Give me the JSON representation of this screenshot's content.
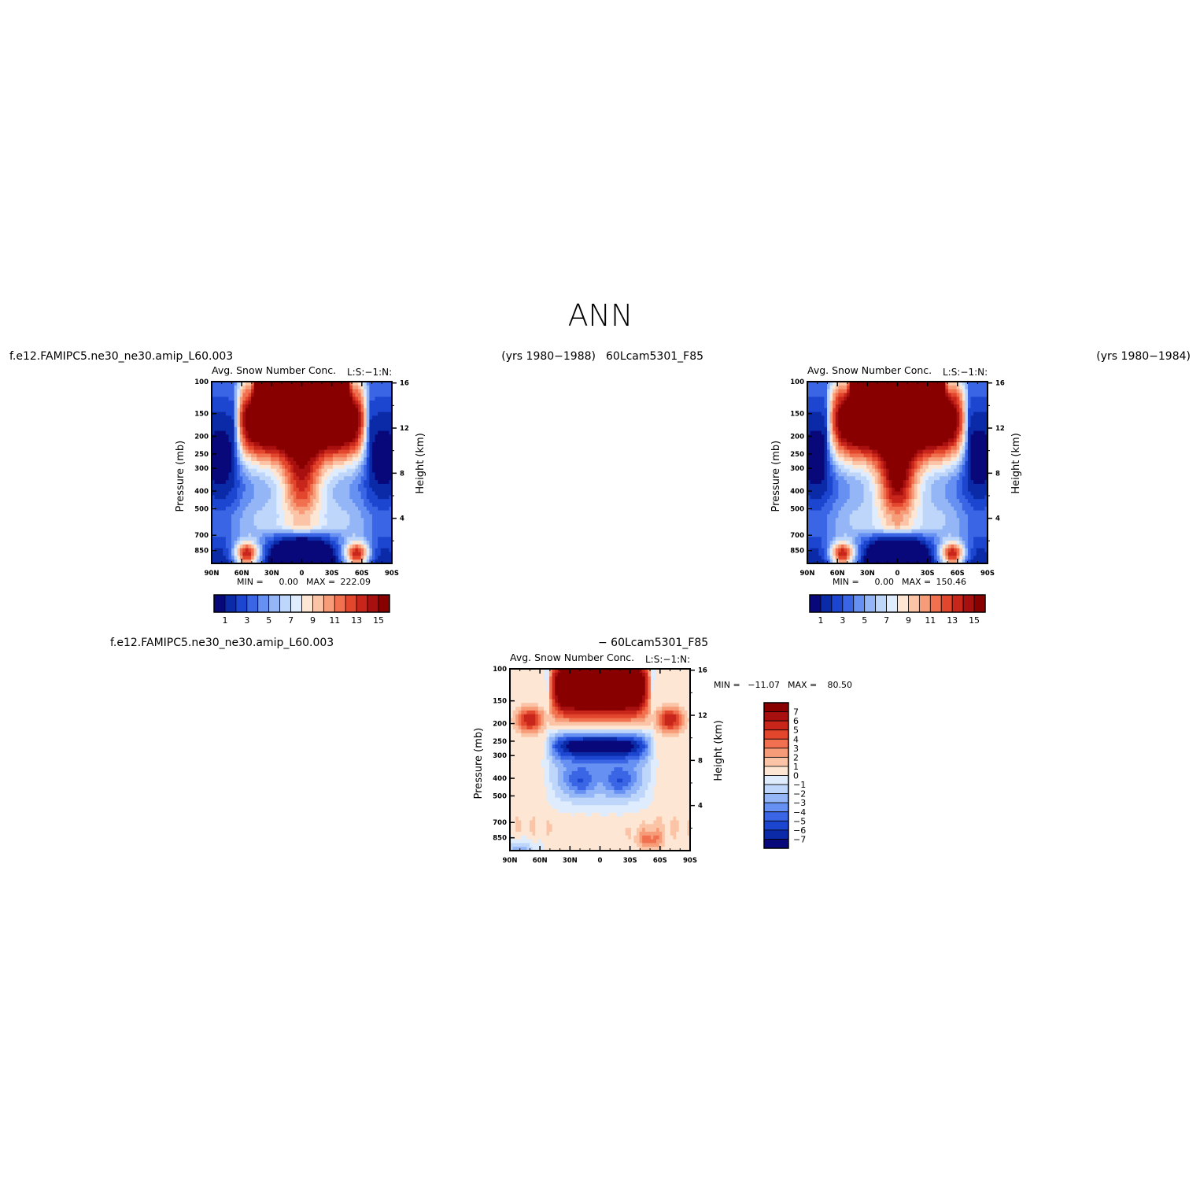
{
  "page": {
    "season_title": "ANN",
    "header": {
      "left_case": "f.e12.FAMIPC5.ne30_ne30.amip_L60.003",
      "left_years": "(yrs 1980−1988)",
      "right_case": "60Lcam5301_F85",
      "right_years": "(yrs 1980−1984)"
    },
    "diff_header": {
      "case_a": "f.e12.FAMIPC5.ne30_ne30.amip_L60.003",
      "case_b": "− 60Lcam5301_F85"
    }
  },
  "colors": {
    "fill_scale": [
      "#08087a",
      "#0a2aa8",
      "#1c46d0",
      "#3a66e6",
      "#6690f2",
      "#94b6f7",
      "#bfd6fb",
      "#deecfd",
      "#fde6d3",
      "#fbc4a6",
      "#f79c78",
      "#f0704f",
      "#e2472d",
      "#c8261a",
      "#a81010",
      "#880000"
    ]
  },
  "chart_data": [
    {
      "type": "heatmap",
      "name": "panel-control",
      "title": "Avg. Snow Number Conc.",
      "title_right": "L:S:−1:N:",
      "ylabel": "Pressure (mb)",
      "ylabel_right": "Height (km)",
      "x_ticks": [
        "90N",
        "60N",
        "30N",
        "0",
        "30S",
        "60S",
        "90S"
      ],
      "x_values": [
        90,
        60,
        30,
        0,
        -30,
        -60,
        -90
      ],
      "y_ticks": [
        100,
        150,
        200,
        250,
        300,
        400,
        500,
        700,
        850
      ],
      "y_right_ticks": [
        16,
        12,
        8,
        4
      ],
      "ylim": [
        100,
        1000
      ],
      "y_scale": "log",
      "stats": {
        "min_label": "MIN =",
        "min_value": "0.00",
        "max_label": "MAX =",
        "max_value": "222.09"
      },
      "colorbar": {
        "orientation": "horizontal",
        "levels": [
          1,
          2,
          3,
          4,
          5,
          6,
          7,
          8,
          9,
          10,
          11,
          12,
          13,
          14,
          15
        ],
        "tick_labels": [
          "1",
          "3",
          "5",
          "7",
          "9",
          "11",
          "13",
          "15"
        ]
      },
      "field": "control"
    },
    {
      "type": "heatmap",
      "name": "panel-test",
      "title": "Avg. Snow Number Conc.",
      "title_right": "L:S:−1:N:",
      "ylabel": "Pressure (mb)",
      "ylabel_right": "Height (km)",
      "x_ticks": [
        "90N",
        "60N",
        "30N",
        "0",
        "30S",
        "60S",
        "90S"
      ],
      "x_values": [
        90,
        60,
        30,
        0,
        -30,
        -60,
        -90
      ],
      "y_ticks": [
        100,
        150,
        200,
        250,
        300,
        400,
        500,
        700,
        850
      ],
      "y_right_ticks": [
        16,
        12,
        8,
        4
      ],
      "ylim": [
        100,
        1000
      ],
      "y_scale": "log",
      "stats": {
        "min_label": "MIN =",
        "min_value": "0.00",
        "max_label": "MAX =",
        "max_value": "150.46"
      },
      "colorbar": {
        "orientation": "horizontal",
        "levels": [
          1,
          2,
          3,
          4,
          5,
          6,
          7,
          8,
          9,
          10,
          11,
          12,
          13,
          14,
          15
        ],
        "tick_labels": [
          "1",
          "3",
          "5",
          "7",
          "9",
          "11",
          "13",
          "15"
        ]
      },
      "field": "test"
    },
    {
      "type": "heatmap",
      "name": "panel-difference",
      "title": "Avg. Snow Number Conc.",
      "title_right": "L:S:−1:N:",
      "ylabel": "Pressure (mb)",
      "ylabel_right": "Height (km)",
      "x_ticks": [
        "90N",
        "60N",
        "30N",
        "0",
        "30S",
        "60S",
        "90S"
      ],
      "x_values": [
        90,
        60,
        30,
        0,
        -30,
        -60,
        -90
      ],
      "y_ticks": [
        100,
        150,
        200,
        250,
        300,
        400,
        500,
        700,
        850
      ],
      "y_right_ticks": [
        16,
        12,
        8,
        4
      ],
      "ylim": [
        100,
        1000
      ],
      "y_scale": "log",
      "stats": {
        "min_label": "MIN =",
        "min_value": "−11.07",
        "max_label": "MAX =",
        "max_value": "80.50"
      },
      "colorbar": {
        "orientation": "vertical",
        "levels": [
          7,
          6,
          5,
          4,
          3,
          2,
          1,
          0,
          -1,
          -2,
          -3,
          -4,
          -5,
          -6,
          -7
        ],
        "tick_labels": [
          "7",
          "6",
          "5",
          "4",
          "3",
          "2",
          "1",
          "0",
          "−1",
          "−2",
          "−3",
          "−4",
          "−5",
          "−6",
          "−7"
        ]
      },
      "field": "difference"
    }
  ]
}
